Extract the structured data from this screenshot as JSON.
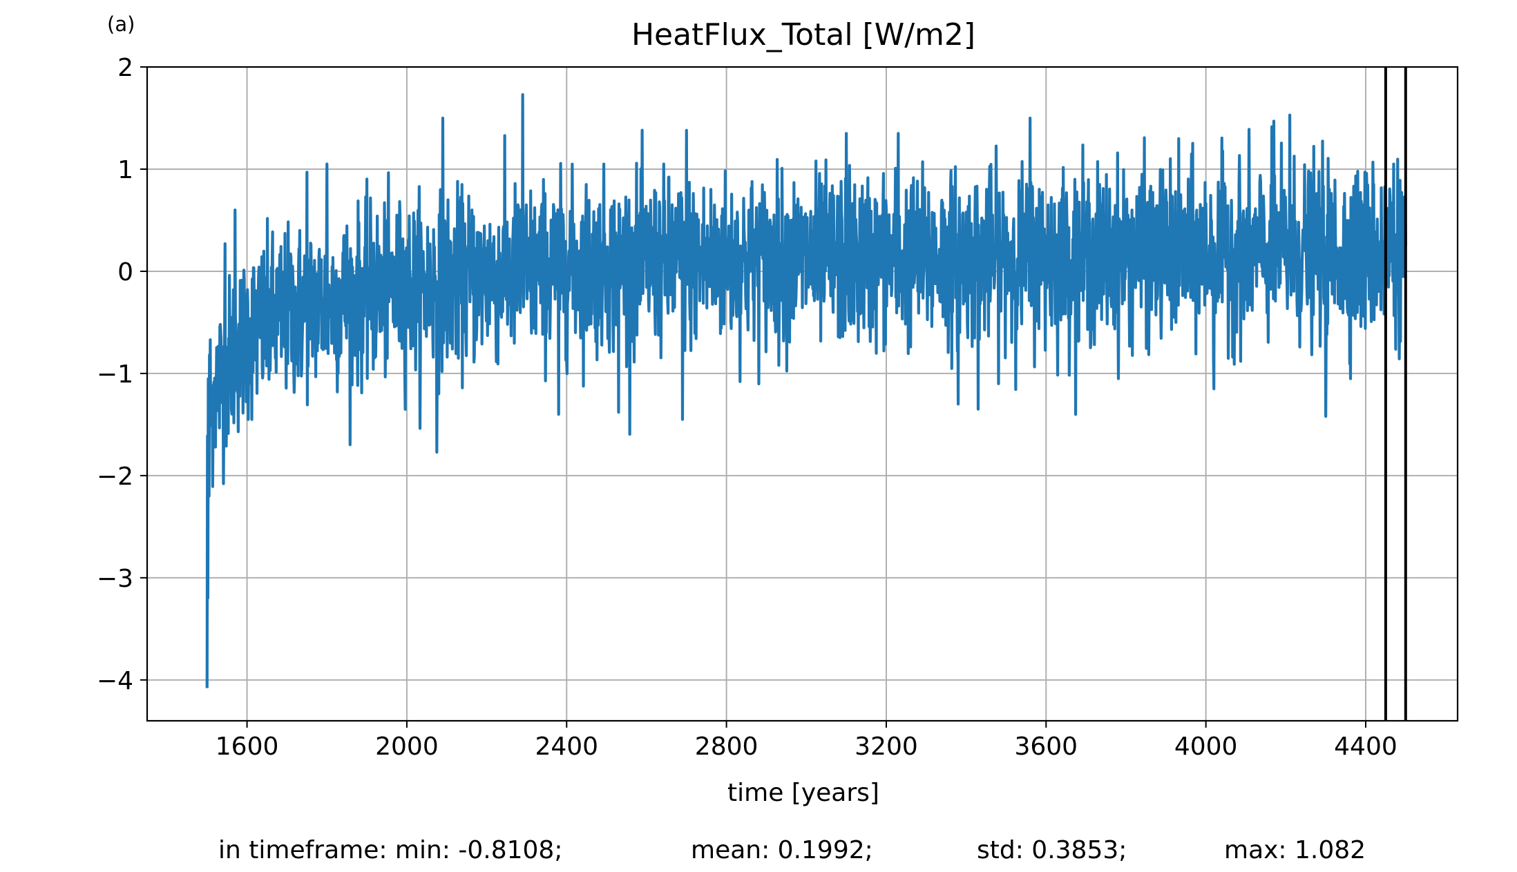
{
  "panel_label": "(a)",
  "chart_data": {
    "type": "line",
    "title": "HeatFlux_Total [W/m2]",
    "xlabel": "time [years]",
    "ylabel": "",
    "xlim": [
      1350,
      4630
    ],
    "ylim": [
      -4.4,
      2.0
    ],
    "xticks": [
      1600,
      2000,
      2400,
      2800,
      3200,
      3600,
      4000,
      4400
    ],
    "xtick_labels": [
      "1600",
      "2000",
      "2400",
      "2800",
      "3200",
      "3600",
      "4000",
      "4400"
    ],
    "yticks": [
      -4,
      -3,
      -2,
      -1,
      0,
      1,
      2
    ],
    "ytick_labels": [
      "−4",
      "−3",
      "−2",
      "−1",
      "0",
      "1",
      "2"
    ],
    "grid": true,
    "line_color": "#1f77b4",
    "vertical_markers": [
      4450,
      4500
    ],
    "marker_color": "#000000",
    "trend_points": [
      {
        "x": 1500,
        "y": -1.5
      },
      {
        "x": 1520,
        "y": -1.15
      },
      {
        "x": 1560,
        "y": -0.85
      },
      {
        "x": 1600,
        "y": -0.62
      },
      {
        "x": 1700,
        "y": -0.42
      },
      {
        "x": 1800,
        "y": -0.3
      },
      {
        "x": 2000,
        "y": -0.15
      },
      {
        "x": 2200,
        "y": -0.05
      },
      {
        "x": 2400,
        "y": 0.05
      },
      {
        "x": 2800,
        "y": 0.1
      },
      {
        "x": 3200,
        "y": 0.12
      },
      {
        "x": 3600,
        "y": 0.15
      },
      {
        "x": 4000,
        "y": 0.18
      },
      {
        "x": 4500,
        "y": 0.2
      }
    ],
    "noise_std": 0.36,
    "series_start": 1500,
    "series_end": 4500,
    "series_step": 1,
    "highlighted_points": [
      {
        "x": 1500,
        "y": -4.08
      },
      {
        "x": 1502,
        "y": -3.2
      },
      {
        "x": 1505,
        "y": -2.2
      },
      {
        "x": 1508,
        "y": -0.67
      },
      {
        "x": 1545,
        "y": 0.27
      },
      {
        "x": 1570,
        "y": 0.6
      },
      {
        "x": 1750,
        "y": 0.97
      },
      {
        "x": 1800,
        "y": 1.05
      },
      {
        "x": 2090,
        "y": 1.5
      },
      {
        "x": 2075,
        "y": -1.77
      },
      {
        "x": 2290,
        "y": 1.73
      },
      {
        "x": 2380,
        "y": -1.4
      },
      {
        "x": 2530,
        "y": -1.38
      },
      {
        "x": 2690,
        "y": -1.45
      },
      {
        "x": 2700,
        "y": 1.38
      },
      {
        "x": 3100,
        "y": 1.35
      },
      {
        "x": 3230,
        "y": 1.35
      },
      {
        "x": 3380,
        "y": -1.3
      },
      {
        "x": 3430,
        "y": -1.35
      },
      {
        "x": 3560,
        "y": 1.5
      },
      {
        "x": 4020,
        "y": -1.15
      },
      {
        "x": 4170,
        "y": 1.47
      },
      {
        "x": 4210,
        "y": 1.53
      },
      {
        "x": 4300,
        "y": -1.42
      },
      {
        "x": 4420,
        "y": 0.85
      },
      {
        "x": 4470,
        "y": 1.05
      }
    ],
    "footer": {
      "min": "in timeframe: min: -0.8108;",
      "mean": "mean: 0.1992;",
      "std": "std: 0.3853;",
      "max": "max: 1.082"
    }
  }
}
